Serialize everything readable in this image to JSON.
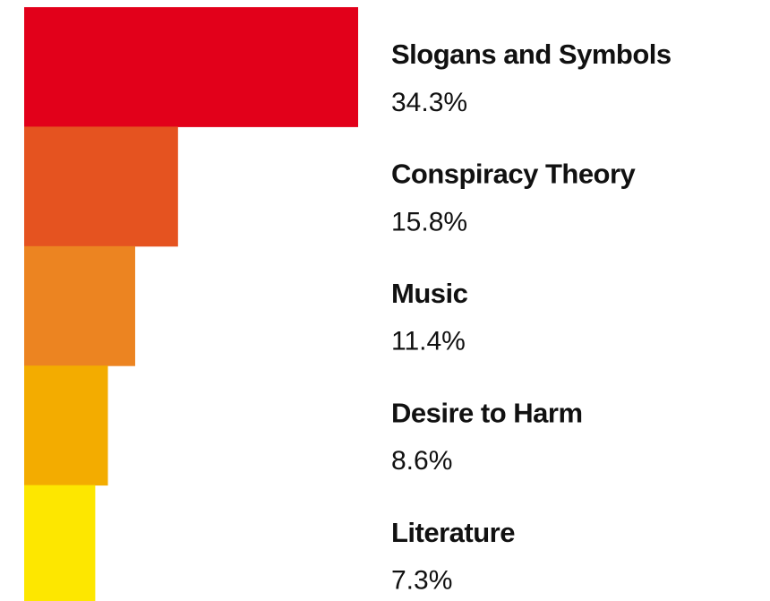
{
  "chart_data": {
    "type": "bar",
    "orientation": "horizontal",
    "categories": [
      "Slogans and Symbols",
      "Conspiracy Theory",
      "Music",
      "Desire to Harm",
      "Literature"
    ],
    "values": [
      34.3,
      15.8,
      11.4,
      8.6,
      7.3
    ],
    "value_labels": [
      "34.3%",
      "15.8%",
      "11.4%",
      "8.6%",
      "7.3%"
    ],
    "colors": [
      "#e2001a",
      "#e55320",
      "#ec8421",
      "#f3ac00",
      "#fde700"
    ]
  }
}
